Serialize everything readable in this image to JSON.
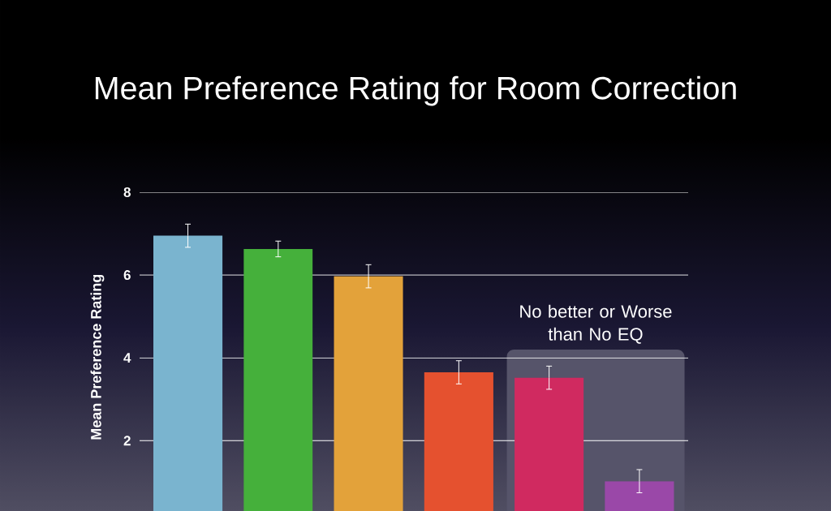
{
  "chart_data": {
    "type": "bar",
    "title": "Mean Preference Rating for Room Correction",
    "ylabel": "Mean Preference Rating",
    "categories": [
      null,
      null,
      null,
      null,
      null,
      null
    ],
    "values": [
      6.95,
      6.63,
      5.97,
      3.65,
      3.52,
      1.02
    ],
    "errors": [
      0.28,
      0.19,
      0.28,
      0.28,
      0.28,
      0.28
    ],
    "colors": [
      "#7ab4cf",
      "#45b03b",
      "#e3a23a",
      "#e5512f",
      "#d02a60",
      "#9a48a8"
    ],
    "ylim": [
      0.3,
      8
    ],
    "yticks": [
      2,
      4,
      6,
      8
    ],
    "grid": "y",
    "annotations": [
      "No better or Worse than No EQ"
    ]
  }
}
